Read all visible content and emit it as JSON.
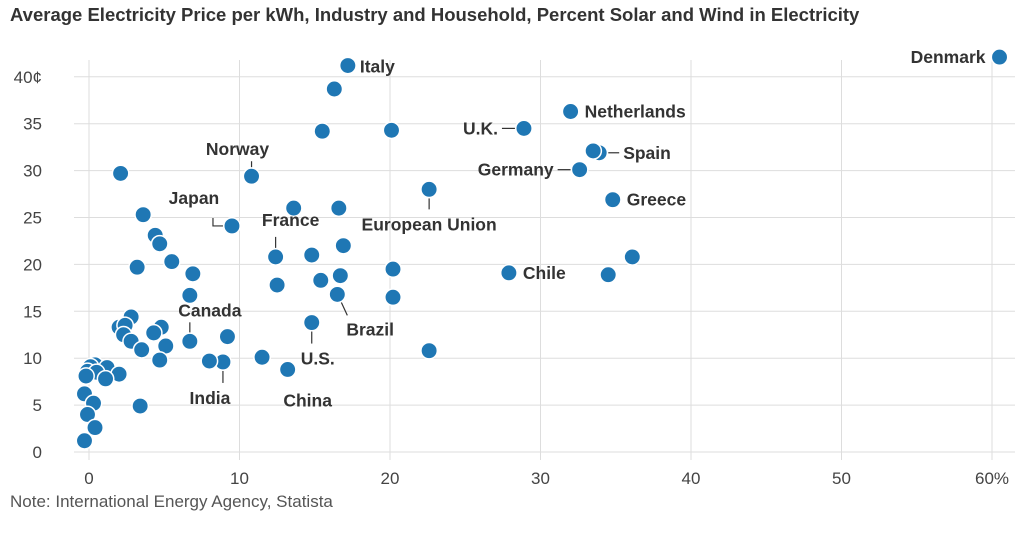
{
  "title": "Average Electricity Price per kWh, Industry and Household, Percent Solar and Wind in Electricity",
  "note": "Note: International Energy  Agency, Statista",
  "chart_data": {
    "type": "scatter",
    "title": "Average Electricity Price per kWh, Industry and Household, Percent Solar and Wind in Electricity",
    "xlabel": "",
    "ylabel": "",
    "xlim": [
      -0.8,
      61.5
    ],
    "ylim": [
      -0.8,
      44
    ],
    "x_ticks": [
      0,
      10,
      20,
      30,
      40,
      50,
      60
    ],
    "x_tick_labels": [
      "0",
      "10",
      "20",
      "30",
      "40",
      "50",
      "60%"
    ],
    "y_ticks": [
      0,
      5,
      10,
      15,
      20,
      25,
      30,
      35,
      40
    ],
    "y_tick_labels": [
      "0",
      "5",
      "10",
      "15",
      "20",
      "25",
      "30",
      "35",
      "40¢"
    ],
    "grid": true,
    "color": "#1a72a8",
    "points": [
      {
        "x": 60.5,
        "y": 42.1,
        "label": "Denmark"
      },
      {
        "x": 17.2,
        "y": 41.2,
        "label": "Italy"
      },
      {
        "x": 32.0,
        "y": 36.3,
        "label": "Netherlands"
      },
      {
        "x": 28.9,
        "y": 34.5,
        "label": "U.K."
      },
      {
        "x": 33.9,
        "y": 31.9,
        "label": "Spain"
      },
      {
        "x": 32.6,
        "y": 30.1,
        "label": "Germany"
      },
      {
        "x": 10.8,
        "y": 29.4,
        "label": "Norway"
      },
      {
        "x": 22.6,
        "y": 28.0,
        "label": "European Union"
      },
      {
        "x": 34.8,
        "y": 26.9,
        "label": "Greece"
      },
      {
        "x": 9.5,
        "y": 24.1,
        "label": "Japan"
      },
      {
        "x": 12.4,
        "y": 20.8,
        "label": "France"
      },
      {
        "x": 27.9,
        "y": 19.1,
        "label": "Chile"
      },
      {
        "x": 16.5,
        "y": 16.8,
        "label": "Brazil"
      },
      {
        "x": 6.7,
        "y": 11.8,
        "label": "Canada"
      },
      {
        "x": 14.8,
        "y": 13.8,
        "label": "U.S."
      },
      {
        "x": 8.9,
        "y": 9.6,
        "label": "India"
      },
      {
        "x": 13.2,
        "y": 8.8,
        "label": "China"
      },
      {
        "x": 16.3,
        "y": 38.7
      },
      {
        "x": 15.5,
        "y": 34.2
      },
      {
        "x": 20.1,
        "y": 34.3
      },
      {
        "x": 33.5,
        "y": 32.1
      },
      {
        "x": 2.1,
        "y": 29.7
      },
      {
        "x": 13.6,
        "y": 26.0
      },
      {
        "x": 16.6,
        "y": 26.0
      },
      {
        "x": 3.6,
        "y": 25.3
      },
      {
        "x": 4.4,
        "y": 23.1
      },
      {
        "x": 4.7,
        "y": 22.2
      },
      {
        "x": 16.9,
        "y": 22.0
      },
      {
        "x": 14.8,
        "y": 21.0
      },
      {
        "x": 36.1,
        "y": 20.8
      },
      {
        "x": 5.5,
        "y": 20.3
      },
      {
        "x": 3.2,
        "y": 19.7
      },
      {
        "x": 20.2,
        "y": 19.5
      },
      {
        "x": 6.9,
        "y": 19.0
      },
      {
        "x": 34.5,
        "y": 18.9
      },
      {
        "x": 16.7,
        "y": 18.8
      },
      {
        "x": 15.4,
        "y": 18.3
      },
      {
        "x": 12.5,
        "y": 17.8
      },
      {
        "x": 6.7,
        "y": 16.7
      },
      {
        "x": 20.2,
        "y": 16.5
      },
      {
        "x": 2.8,
        "y": 14.4
      },
      {
        "x": 2.0,
        "y": 13.3
      },
      {
        "x": 2.4,
        "y": 13.5
      },
      {
        "x": 4.8,
        "y": 13.3
      },
      {
        "x": 4.3,
        "y": 12.7
      },
      {
        "x": 2.3,
        "y": 12.5
      },
      {
        "x": 9.2,
        "y": 12.3
      },
      {
        "x": 2.8,
        "y": 11.8
      },
      {
        "x": 5.1,
        "y": 11.3
      },
      {
        "x": 3.5,
        "y": 10.9
      },
      {
        "x": 22.6,
        "y": 10.8
      },
      {
        "x": 11.5,
        "y": 10.1
      },
      {
        "x": 4.7,
        "y": 9.8
      },
      {
        "x": 8.0,
        "y": 9.7
      },
      {
        "x": 0.4,
        "y": 9.3
      },
      {
        "x": 0.1,
        "y": 9.1
      },
      {
        "x": 1.2,
        "y": 9.0
      },
      {
        "x": -0.1,
        "y": 8.6
      },
      {
        "x": 0.5,
        "y": 8.5
      },
      {
        "x": 2.0,
        "y": 8.3
      },
      {
        "x": -0.2,
        "y": 8.1
      },
      {
        "x": 1.1,
        "y": 7.8
      },
      {
        "x": -0.3,
        "y": 6.2
      },
      {
        "x": 0.3,
        "y": 5.2
      },
      {
        "x": 3.4,
        "y": 4.9
      },
      {
        "x": -0.1,
        "y": 4.0
      },
      {
        "x": 0.4,
        "y": 2.6
      },
      {
        "x": -0.3,
        "y": 1.2
      }
    ]
  }
}
